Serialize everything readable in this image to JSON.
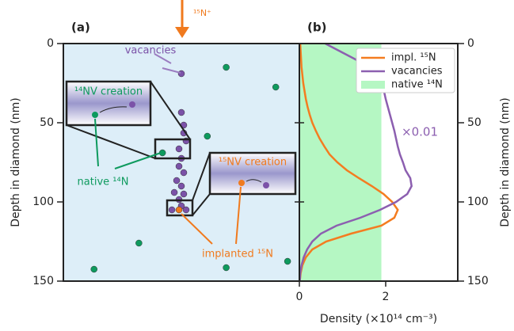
{
  "chart_data": [
    {
      "type": "scatter",
      "panel_label": "(a)",
      "ylabel": "Depth in diamond (nm)",
      "ylim": [
        0,
        150
      ],
      "yticks": [
        0,
        50,
        100,
        150
      ],
      "xlim": [
        0,
        1
      ],
      "y_inverted": true,
      "background": "#ddeef8",
      "annotations": [
        "¹⁵N⁺",
        "¹⁴NV creation",
        "¹⁵NV creation"
      ],
      "series": [
        {
          "name": "vacancies",
          "color": "#7b52a8",
          "x": [
            0.5,
            0.5,
            0.51,
            0.51,
            0.52,
            0.49,
            0.5,
            0.49,
            0.51,
            0.48,
            0.5,
            0.47,
            0.51,
            0.49,
            0.5,
            0.46,
            0.52
          ],
          "y": [
            19,
            43.5,
            51.5,
            56.5,
            61.5,
            66.5,
            72.5,
            77.5,
            81.5,
            86.5,
            90,
            94,
            95,
            98.5,
            102.5,
            105,
            105
          ]
        },
        {
          "name": "native ¹⁴N",
          "color": "#0e9a5e",
          "x": [
            0.69,
            0.9,
            0.61,
            0.42,
            0.32,
            0.13,
            0.69,
            0.95
          ],
          "y": [
            15,
            27.5,
            58.5,
            69,
            126,
            142.5,
            141.5,
            137.5
          ]
        },
        {
          "name": "implanted ¹⁵N",
          "color": "#f07a1e",
          "x": [
            0.49
          ],
          "y": [
            105
          ]
        }
      ]
    },
    {
      "type": "step",
      "panel_label": "(b)",
      "xlabel": "Density (×10¹⁴ cm⁻³)",
      "ylabel": "Depth in diamond (nm)",
      "xlim": [
        0,
        3.67
      ],
      "xticks": [
        0,
        2
      ],
      "ylim": [
        0,
        150
      ],
      "yticks": [
        0,
        50,
        100,
        150
      ],
      "y_inverted": true,
      "legend": "upper right",
      "annotations": [
        "×0.01"
      ],
      "y": [
        0,
        5,
        10,
        15,
        20,
        25,
        30,
        35,
        40,
        45,
        50,
        55,
        60,
        65,
        70,
        75,
        80,
        85,
        90,
        95,
        100,
        105,
        110,
        115,
        120,
        125,
        130,
        135,
        140,
        145,
        150
      ],
      "series": [
        {
          "name": "impl. ¹⁵N",
          "color": "#f47c20",
          "values": [
            0.02,
            0.03,
            0.04,
            0.05,
            0.07,
            0.09,
            0.12,
            0.15,
            0.19,
            0.24,
            0.3,
            0.38,
            0.47,
            0.58,
            0.7,
            0.88,
            1.1,
            1.38,
            1.68,
            1.95,
            2.15,
            2.28,
            2.2,
            1.9,
            1.2,
            0.62,
            0.3,
            0.15,
            0.07,
            0.03,
            0.01
          ]
        },
        {
          "name": "vacancies",
          "color": "#8c5fb0",
          "values": [
            0.6,
            0.95,
            1.3,
            1.6,
            1.78,
            1.88,
            1.96,
            2.0,
            2.05,
            2.1,
            2.15,
            2.2,
            2.24,
            2.28,
            2.33,
            2.4,
            2.46,
            2.57,
            2.6,
            2.5,
            2.24,
            1.87,
            1.41,
            0.86,
            0.5,
            0.3,
            0.18,
            0.1,
            0.05,
            0.02,
            0.01
          ]
        },
        {
          "name": "native ¹⁴N",
          "color": "#b5f7c3",
          "kind": "area",
          "values": [
            1.9,
            1.9,
            1.9,
            1.9,
            1.9,
            1.9,
            1.9,
            1.9,
            1.9,
            1.9,
            1.9,
            1.9,
            1.9,
            1.9,
            1.9,
            1.9,
            1.9,
            1.9,
            1.9,
            1.9,
            1.9,
            1.9,
            1.9,
            1.9,
            1.9,
            1.9,
            1.9,
            1.9,
            1.9,
            1.9,
            1.9
          ]
        }
      ]
    }
  ]
}
